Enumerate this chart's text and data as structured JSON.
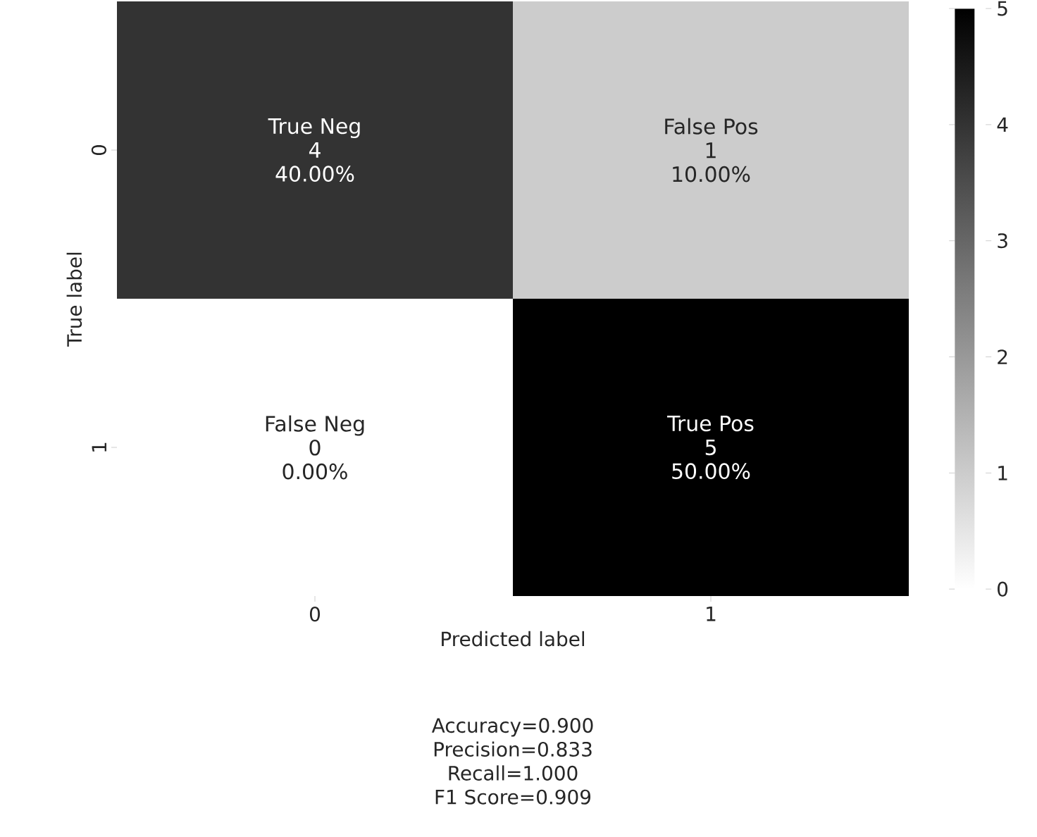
{
  "chart_data": {
    "type": "heatmap",
    "categories": [
      "0",
      "1"
    ],
    "y_categories": [
      "0",
      "1"
    ],
    "cells": [
      [
        4,
        1
      ],
      [
        0,
        5
      ]
    ],
    "cell_labels": [
      [
        [
          "True Neg",
          "4",
          "40.00%"
        ],
        [
          "False Pos",
          "1",
          "10.00%"
        ]
      ],
      [
        [
          "False Neg",
          "0",
          "0.00%"
        ],
        [
          "True Pos",
          "5",
          "50.00%"
        ]
      ]
    ],
    "clim": [
      0,
      5
    ],
    "cticks": [
      0,
      1,
      2,
      3,
      4,
      5
    ],
    "xlabel": "Predicted label",
    "ylabel": "True label",
    "annotations": [
      "Accuracy=0.900",
      "Precision=0.833",
      "Recall=1.000",
      "F1 Score=0.909"
    ]
  }
}
